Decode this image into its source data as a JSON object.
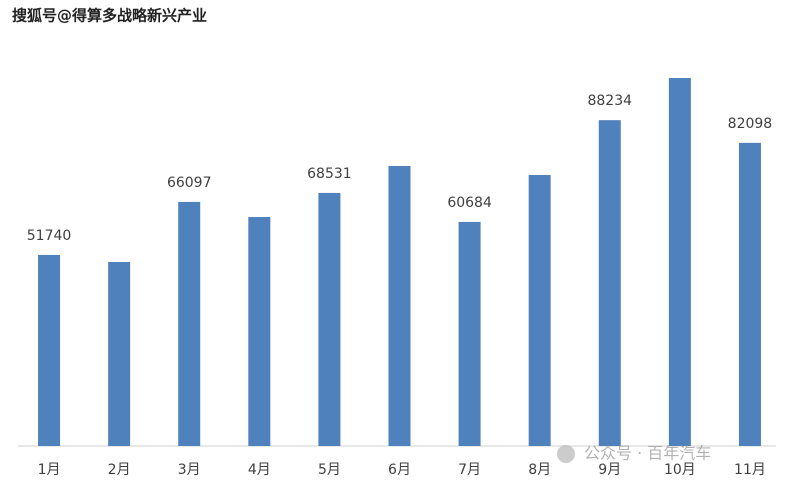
{
  "chart_data": {
    "type": "bar",
    "watermark_top": "搜狐号@得算多战略新兴产业",
    "watermark_bottom": "公众号 · 百年汽车",
    "categories": [
      "1月",
      "2月",
      "3月",
      "4月",
      "5月",
      "6月",
      "7月",
      "8月",
      "9月",
      "10月",
      "11月"
    ],
    "values": [
      51740,
      49830,
      66097,
      62010,
      68531,
      75820,
      60684,
      73390,
      88234,
      99650,
      82098
    ],
    "value_labels": [
      "51740",
      null,
      "66097",
      null,
      "68531",
      null,
      "60684",
      null,
      "88234",
      null,
      "82098"
    ],
    "color": "#4f81bd",
    "ylim": [
      0,
      110000
    ]
  }
}
